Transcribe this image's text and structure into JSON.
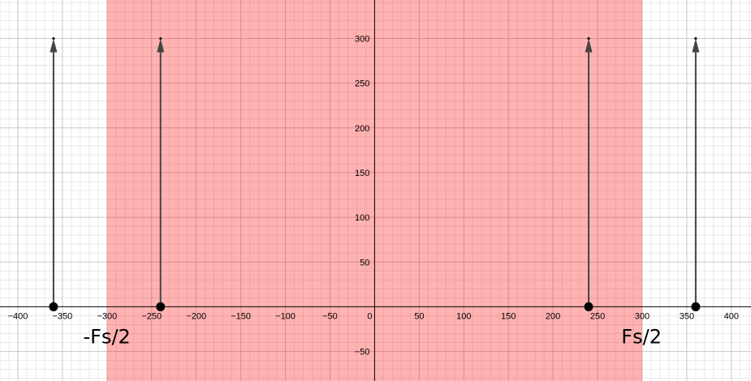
{
  "chart_data": {
    "type": "stem",
    "xlim": [
      -420,
      422
    ],
    "ylim": [
      -83,
      343
    ],
    "x_ticks": [
      -400,
      -350,
      -300,
      -250,
      -200,
      -150,
      -100,
      -50,
      0,
      50,
      100,
      150,
      200,
      250,
      300,
      350,
      400
    ],
    "y_ticks": [
      -50,
      50,
      100,
      150,
      200,
      250,
      300
    ],
    "x_tick_labels": [
      "−400",
      "−350",
      "−300",
      "−250",
      "−200",
      "−150",
      "−100",
      "−50",
      "0",
      "50",
      "100",
      "150",
      "200",
      "250",
      "300",
      "350",
      "400"
    ],
    "y_tick_labels": [
      "−50",
      "50",
      "100",
      "150",
      "200",
      "250",
      "300"
    ],
    "grid": true,
    "shaded_band": {
      "x_from": -300,
      "x_to": 300,
      "color": "#ff0000",
      "opacity": 0.3
    },
    "stems": [
      {
        "x": -360,
        "y": 300
      },
      {
        "x": -240,
        "y": 300
      },
      {
        "x": 240,
        "y": 300
      },
      {
        "x": 360,
        "y": 300
      }
    ],
    "annotations": [
      {
        "text": "-Fs/2",
        "x": -300
      },
      {
        "text": "Fs/2",
        "x": 300
      }
    ],
    "colors": {
      "stem": "#444444",
      "band": "#ff0000",
      "grid_major": "#c8c8c8",
      "grid_minor": "#e8e8e8",
      "axis": "#000000"
    }
  }
}
